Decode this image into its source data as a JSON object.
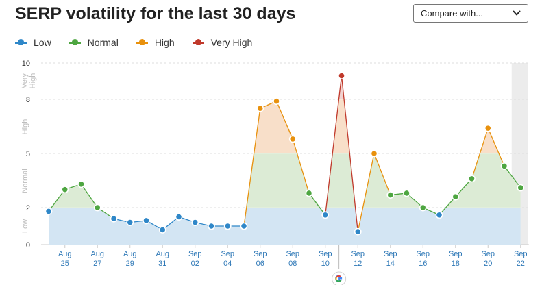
{
  "header": {
    "title": "SERP volatility for the last 30 days"
  },
  "compare": {
    "label": "Compare with..."
  },
  "legend": [
    {
      "label": "Low",
      "color": "#2f87c8"
    },
    {
      "label": "Normal",
      "color": "#4ea641"
    },
    {
      "label": "High",
      "color": "#e8910d"
    },
    {
      "label": "Very High",
      "color": "#c0392b"
    }
  ],
  "chart_data": {
    "type": "line",
    "title": "SERP volatility for the last 30 days",
    "x": [
      "Aug 24",
      "Aug 25",
      "Aug 26",
      "Aug 27",
      "Aug 28",
      "Aug 29",
      "Aug 30",
      "Aug 31",
      "Sep 01",
      "Sep 02",
      "Sep 03",
      "Sep 04",
      "Sep 05",
      "Sep 06",
      "Sep 07",
      "Sep 08",
      "Sep 09",
      "Sep 10",
      "Sep 11",
      "Sep 12",
      "Sep 13",
      "Sep 14",
      "Sep 15",
      "Sep 16",
      "Sep 17",
      "Sep 18",
      "Sep 19",
      "Sep 20",
      "Sep 21",
      "Sep 22"
    ],
    "values": [
      1.8,
      3.0,
      3.3,
      2.0,
      1.4,
      1.2,
      1.3,
      0.8,
      1.5,
      1.2,
      1.0,
      1.0,
      1.0,
      7.5,
      7.9,
      5.8,
      2.8,
      1.6,
      9.3,
      0.7,
      5.0,
      2.7,
      2.8,
      2.0,
      1.6,
      2.6,
      3.6,
      6.4,
      4.3,
      3.1
    ],
    "x_tick_labels": [
      {
        "month": "Aug",
        "day": "25"
      },
      {
        "month": "Aug",
        "day": "27"
      },
      {
        "month": "Aug",
        "day": "29"
      },
      {
        "month": "Aug",
        "day": "31"
      },
      {
        "month": "Sep",
        "day": "02"
      },
      {
        "month": "Sep",
        "day": "04"
      },
      {
        "month": "Sep",
        "day": "06"
      },
      {
        "month": "Sep",
        "day": "08"
      },
      {
        "month": "Sep",
        "day": "10"
      },
      {
        "month": "Sep",
        "day": "12"
      },
      {
        "month": "Sep",
        "day": "14"
      },
      {
        "month": "Sep",
        "day": "16"
      },
      {
        "month": "Sep",
        "day": "18"
      },
      {
        "month": "Sep",
        "day": "20"
      },
      {
        "month": "Sep",
        "day": "22"
      }
    ],
    "y_ticks": [
      "0",
      "2",
      "5",
      "8",
      "10"
    ],
    "ylim": [
      0,
      10
    ],
    "bands": [
      {
        "label": "Low",
        "from": 0,
        "to": 2,
        "color": "#2f87c8",
        "fill": "#d3e5f3"
      },
      {
        "label": "Normal",
        "from": 2,
        "to": 5,
        "color": "#4ea641",
        "fill": "#dcebd5"
      },
      {
        "label": "High",
        "from": 5,
        "to": 8,
        "color": "#e8910d",
        "fill": "#f8dfc9"
      },
      {
        "label": "Very High",
        "from": 8,
        "to": 10,
        "color": "#c0392b",
        "fill": "#f1d2d0"
      }
    ],
    "band_axis_labels": [
      "Low",
      "Normal",
      "High",
      "Very",
      "High"
    ],
    "google_update_marker": "Sep 11",
    "grid": "horizontal dashed at band boundaries"
  }
}
